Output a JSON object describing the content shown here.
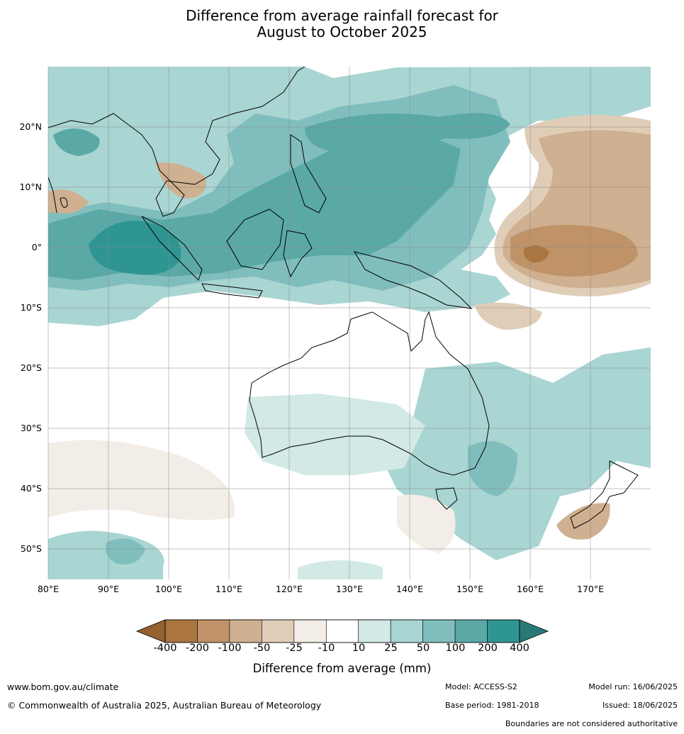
{
  "title": {
    "line1": "Difference from average rainfall forecast for",
    "line2": "August to October 2025"
  },
  "map": {
    "lat_labels": [
      "20°N",
      "10°N",
      "0°",
      "10°S",
      "20°S",
      "30°S",
      "40°S",
      "50°S"
    ],
    "lon_labels": [
      "80°E",
      "90°E",
      "100°E",
      "110°E",
      "120°E",
      "130°E",
      "140°E",
      "150°E",
      "160°E",
      "170°E"
    ],
    "extent": {
      "lon": [
        80,
        180
      ],
      "lat": [
        -55,
        30
      ]
    }
  },
  "legend": {
    "label": "Difference from average (mm)",
    "ticks": [
      "-400",
      "-200",
      "-100",
      "-50",
      "-25",
      "-10",
      "10",
      "25",
      "50",
      "100",
      "200",
      "400"
    ],
    "colors": [
      "#aa7540",
      "#bf9367",
      "#cfb090",
      "#e0cdb8",
      "#f2ede6",
      "#ffffff",
      "#d2e9e6",
      "#a9d5d2",
      "#80bebd",
      "#5aa9a7",
      "#2f9592"
    ],
    "under_color": "#94612f",
    "over_color": "#2a7977"
  },
  "footer": {
    "url": "www.bom.gov.au/climate",
    "copyright": "© Commonwealth of Australia 2025, Australian Bureau of Meteorology",
    "model": "Model: ACCESS-S2",
    "base_period": "Base period: 1981-2018",
    "model_run": "Model run: 16/06/2025",
    "issued": "Issued: 18/06/2025",
    "disclaimer": "Boundaries are not considered authoritative"
  }
}
